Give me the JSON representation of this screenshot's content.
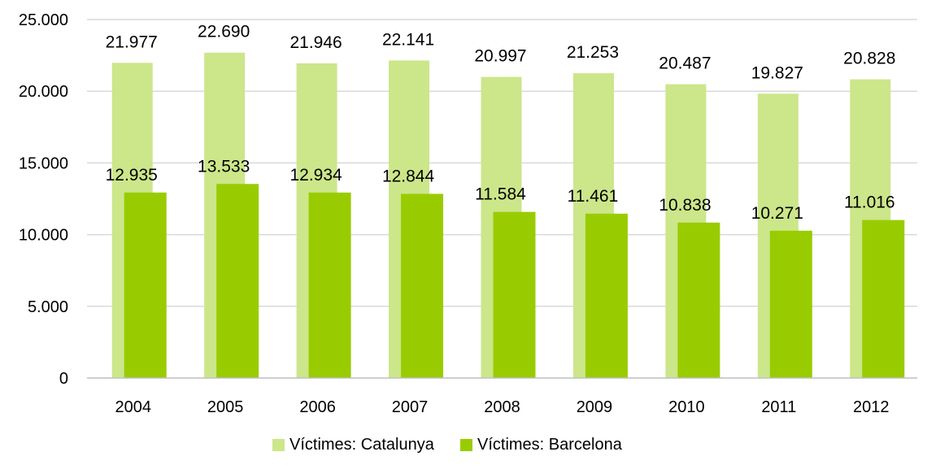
{
  "chart_data": {
    "type": "bar",
    "categories": [
      "2004",
      "2005",
      "2006",
      "2007",
      "2008",
      "2009",
      "2010",
      "2011",
      "2012"
    ],
    "series": [
      {
        "name": "Víctimes: Catalunya",
        "values": [
          21977,
          22690,
          21946,
          22141,
          20997,
          21253,
          20487,
          19827,
          20828
        ],
        "labels": [
          "21.977",
          "22.690",
          "21.946",
          "22.141",
          "20.997",
          "21.253",
          "20.487",
          "19.827",
          "20.828"
        ],
        "color": "#cce68a"
      },
      {
        "name": "Víctimes: Barcelona",
        "values": [
          12935,
          13533,
          12934,
          12844,
          11584,
          11461,
          10838,
          10271,
          11016
        ],
        "labels": [
          "12.935",
          "13.533",
          "12.934",
          "12.844",
          "11.584",
          "11.461",
          "10.838",
          "10.271",
          "11.016"
        ],
        "color": "#99cc00"
      }
    ],
    "y_ticks": [
      0,
      5000,
      10000,
      15000,
      20000,
      25000
    ],
    "y_tick_labels": [
      "0",
      "5.000",
      "10.000",
      "15.000",
      "20.000",
      "25.000"
    ],
    "ylim": [
      0,
      25000
    ],
    "grid": true,
    "legend_position": "bottom",
    "gridline_color": "#d9d9d9",
    "axis_color": "#bfbfbf"
  }
}
